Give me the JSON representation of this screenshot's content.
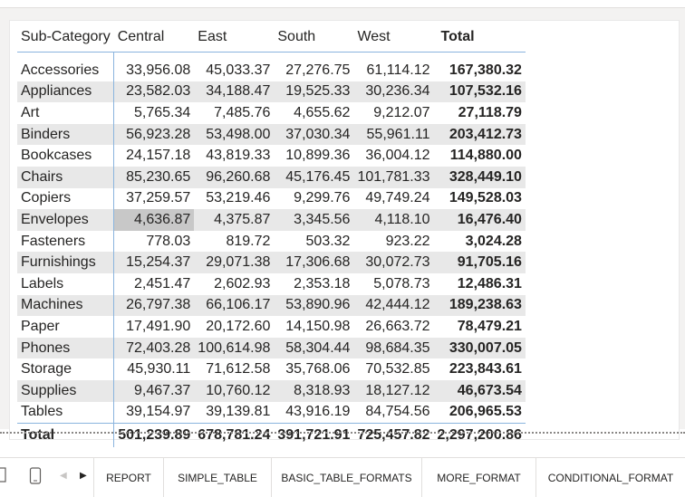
{
  "table": {
    "headers": [
      "Sub-Category",
      "Central",
      "East",
      "South",
      "West",
      "Total"
    ],
    "rows": [
      {
        "label": "Accessories",
        "values": [
          "33,956.08",
          "45,033.37",
          "27,276.75",
          "61,114.12"
        ],
        "total": "167,380.32"
      },
      {
        "label": "Appliances",
        "values": [
          "23,582.03",
          "34,188.47",
          "19,525.33",
          "30,236.34"
        ],
        "total": "107,532.16"
      },
      {
        "label": "Art",
        "values": [
          "5,765.34",
          "7,485.76",
          "4,655.62",
          "9,212.07"
        ],
        "total": "27,118.79"
      },
      {
        "label": "Binders",
        "values": [
          "56,923.28",
          "53,498.00",
          "37,030.34",
          "55,961.11"
        ],
        "total": "203,412.73"
      },
      {
        "label": "Bookcases",
        "values": [
          "24,157.18",
          "43,819.33",
          "10,899.36",
          "36,004.12"
        ],
        "total": "114,880.00"
      },
      {
        "label": "Chairs",
        "values": [
          "85,230.65",
          "96,260.68",
          "45,176.45",
          "101,781.33"
        ],
        "total": "328,449.10"
      },
      {
        "label": "Copiers",
        "values": [
          "37,259.57",
          "53,219.46",
          "9,299.76",
          "49,749.24"
        ],
        "total": "149,528.03"
      },
      {
        "label": "Envelopes",
        "values": [
          "4,636.87",
          "4,375.87",
          "3,345.56",
          "4,118.10"
        ],
        "total": "16,476.40"
      },
      {
        "label": "Fasteners",
        "values": [
          "778.03",
          "819.72",
          "503.32",
          "923.22"
        ],
        "total": "3,024.28"
      },
      {
        "label": "Furnishings",
        "values": [
          "15,254.37",
          "29,071.38",
          "17,306.68",
          "30,072.73"
        ],
        "total": "91,705.16"
      },
      {
        "label": "Labels",
        "values": [
          "2,451.47",
          "2,602.93",
          "2,353.18",
          "5,078.73"
        ],
        "total": "12,486.31"
      },
      {
        "label": "Machines",
        "values": [
          "26,797.38",
          "66,106.17",
          "53,890.96",
          "42,444.12"
        ],
        "total": "189,238.63"
      },
      {
        "label": "Paper",
        "values": [
          "17,491.90",
          "20,172.60",
          "14,150.98",
          "26,663.72"
        ],
        "total": "78,479.21"
      },
      {
        "label": "Phones",
        "values": [
          "72,403.28",
          "100,614.98",
          "58,304.44",
          "98,684.35"
        ],
        "total": "330,007.05"
      },
      {
        "label": "Storage",
        "values": [
          "45,930.11",
          "71,612.58",
          "35,768.06",
          "70,532.85"
        ],
        "total": "223,843.61"
      },
      {
        "label": "Supplies",
        "values": [
          "9,467.37",
          "10,760.12",
          "8,318.93",
          "18,127.12"
        ],
        "total": "46,673.54"
      },
      {
        "label": "Tables",
        "values": [
          "39,154.97",
          "39,139.81",
          "43,916.19",
          "84,754.56"
        ],
        "total": "206,965.53"
      }
    ],
    "grand_total": {
      "label": "Total",
      "values": [
        "501,239.89",
        "678,781.24",
        "391,721.91",
        "725,457.82"
      ],
      "total": "2,297,200.86"
    }
  },
  "tabs": [
    "REPORT",
    "SIMPLE_TABLE",
    "BASIC_TABLE_FORMATS",
    "MORE_FORMAT",
    "CONDITIONAL_FORMAT"
  ],
  "icons": [
    "square-icon",
    "mobile-layout-icon",
    "prev-page-icon",
    "next-page-icon"
  ],
  "colors": {
    "alt_row": "#e8e8e8",
    "highlight_cell": "#c8c8c8",
    "divider": "#8ab4de"
  }
}
